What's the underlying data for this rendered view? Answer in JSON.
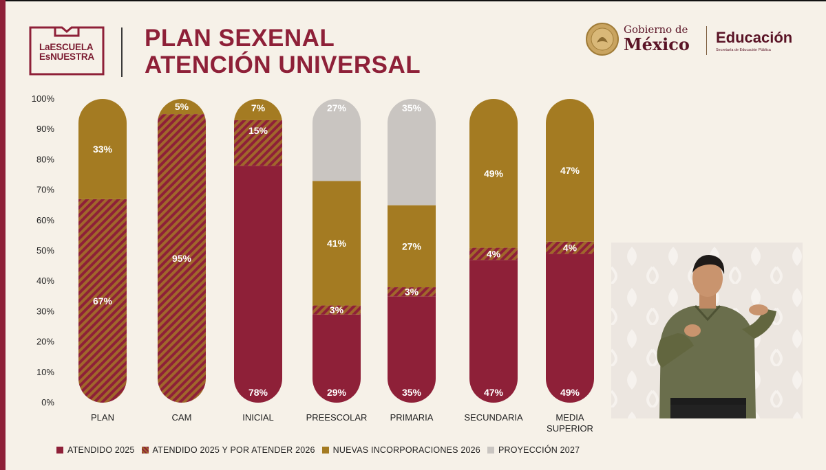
{
  "header": {
    "logo_line1": "LaESCUELA",
    "logo_line2": "EsNUESTRA",
    "title_line1": "PLAN SEXENAL",
    "title_line2": "ATENCIÓN UNIVERSAL",
    "gob_line1": "Gobierno de",
    "gob_line2": "México",
    "edu_title": "Educación",
    "edu_subtitle": "Secretaría de Educación Pública"
  },
  "colors": {
    "atendido_2025": "#8e2038",
    "atendido_y_por_atender": "#a0672b",
    "nuevas_incorporaciones": "#a47b22",
    "proyeccion_2027": "#c9c5c1",
    "background": "#f6f1e8"
  },
  "chart_data": {
    "type": "bar",
    "stacked": true,
    "percent": true,
    "ylim": [
      0,
      100
    ],
    "yticks": [
      "0%",
      "10%",
      "20%",
      "30%",
      "40%",
      "50%",
      "60%",
      "70%",
      "80%",
      "90%",
      "100%"
    ],
    "categories": [
      "PLAN",
      "CAM",
      "INICIAL",
      "PREESCOLAR",
      "PRIMARIA",
      "SECUNDARIA",
      "MEDIA SUPERIOR"
    ],
    "series": [
      {
        "name": "ATENDIDO 2025",
        "values": [
          0,
          0,
          78,
          29,
          35,
          47,
          49
        ],
        "labels": [
          "",
          "",
          "78%",
          "29%",
          "35%",
          "47%",
          "49%"
        ]
      },
      {
        "name": "ATENDIDO 2025 Y POR ATENDER 2026",
        "values": [
          67,
          95,
          15,
          3,
          3,
          4,
          4
        ],
        "labels": [
          "67%",
          "95%",
          "15%",
          "3%",
          "3%",
          "4%",
          "4%"
        ]
      },
      {
        "name": "NUEVAS INCORPORACIONES 2026",
        "values": [
          33,
          5,
          7,
          41,
          27,
          49,
          47
        ],
        "labels": [
          "33%",
          "5%",
          "7%",
          "41%",
          "27%",
          "49%",
          "47%"
        ]
      },
      {
        "name": "PROYECCIÓN 2027",
        "values": [
          0,
          0,
          0,
          27,
          35,
          0,
          0
        ],
        "labels": [
          "",
          "",
          "",
          "27%",
          "35%",
          "",
          ""
        ]
      }
    ],
    "legend_position": "bottom"
  },
  "legend": {
    "items": [
      {
        "label": "ATENDIDO 2025",
        "color": "#8e2038"
      },
      {
        "label": "ATENDIDO 2025 Y POR ATENDER 2026",
        "color": "#a0672b"
      },
      {
        "label": "NUEVAS INCORPORACIONES 2026",
        "color": "#a47b22"
      },
      {
        "label": "PROYECCIÓN 2027",
        "color": "#c9c5c1"
      }
    ]
  },
  "interpreter": {
    "description_icon": "sign-language-interpreter-video"
  }
}
